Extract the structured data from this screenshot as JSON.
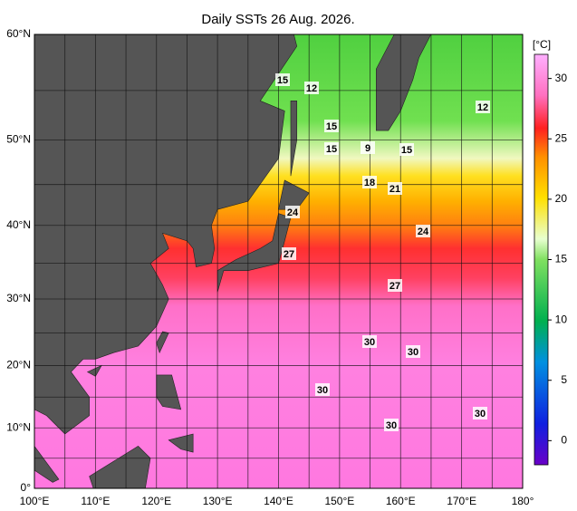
{
  "title": "Daily SSTs 26 Aug. 2026.",
  "map": {
    "xticks": [
      {
        "value": 100,
        "label": "100°E"
      },
      {
        "value": 110,
        "label": "110°E"
      },
      {
        "value": 120,
        "label": "120°E"
      },
      {
        "value": 130,
        "label": "130°E"
      },
      {
        "value": 140,
        "label": "140°E"
      },
      {
        "value": 150,
        "label": "150°E"
      },
      {
        "value": 160,
        "label": "160°E"
      },
      {
        "value": 170,
        "label": "170°E"
      },
      {
        "value": 180,
        "label": "180°"
      }
    ],
    "yticks": [
      {
        "value": 0,
        "label": "0°"
      },
      {
        "value": 10,
        "label": "10°N"
      },
      {
        "value": 20,
        "label": "20°N"
      },
      {
        "value": 30,
        "label": "30°N"
      },
      {
        "value": 40,
        "label": "40°N"
      },
      {
        "value": 50,
        "label": "50°N"
      },
      {
        "value": 60,
        "label": "60°N"
      }
    ],
    "contour_labels": [
      15,
      12,
      15,
      15,
      9,
      15,
      18,
      21,
      24,
      24,
      27,
      27,
      30,
      30,
      30,
      30,
      30,
      12
    ]
  },
  "colorbar": {
    "unit": "[°C]",
    "ticks": [
      0,
      5,
      10,
      15,
      20,
      25,
      30
    ],
    "lim": [
      -2,
      32
    ]
  }
}
